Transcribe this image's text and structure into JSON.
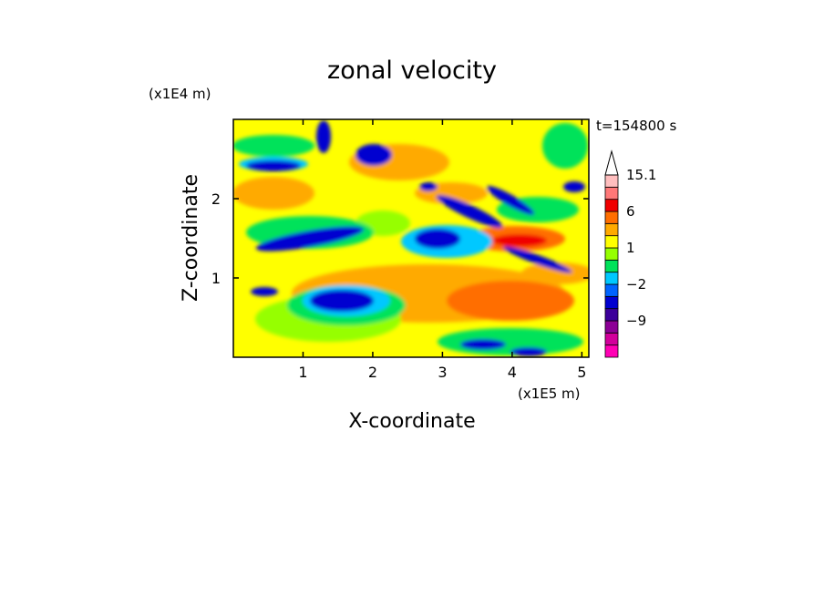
{
  "chart_data": {
    "type": "heatmap",
    "title": "zonal velocity",
    "time_label": "t=154800 s",
    "xlabel": "X-coordinate",
    "ylabel": "Z-coordinate",
    "x_multiplier_label": "(x1E5 m)",
    "y_multiplier_label": "(x1E4 m)",
    "xlim": [
      0,
      5.1
    ],
    "ylim": [
      0,
      3.0
    ],
    "x_ticks": [
      1,
      2,
      3,
      4,
      5
    ],
    "y_ticks": [
      1,
      2
    ],
    "x_tick_labels": [
      "1",
      "2",
      "3",
      "4",
      "5"
    ],
    "y_tick_labels": [
      "1",
      "2"
    ],
    "colorbar": {
      "levels": [
        -15,
        -12,
        -9,
        -6,
        -3,
        -2,
        -1,
        0,
        1,
        2,
        3,
        6,
        9,
        12,
        15.1
      ],
      "colors": [
        "#ff00b4",
        "#d2009b",
        "#8c0096",
        "#3c009a",
        "#0000d0",
        "#0064ff",
        "#00c8ff",
        "#00e25a",
        "#96ff00",
        "#ffff00",
        "#ffaa00",
        "#ff6e00",
        "#f00000",
        "#ff7878",
        "#ffbebe"
      ],
      "labeled_ticks": [
        {
          "value": 15.1,
          "label": "15.1"
        },
        {
          "value": 6,
          "label": "6"
        },
        {
          "value": 1,
          "label": "1"
        },
        {
          "value": -2,
          "label": "−2"
        },
        {
          "value": -9,
          "label": "−9"
        }
      ],
      "extend_top": true
    }
  }
}
